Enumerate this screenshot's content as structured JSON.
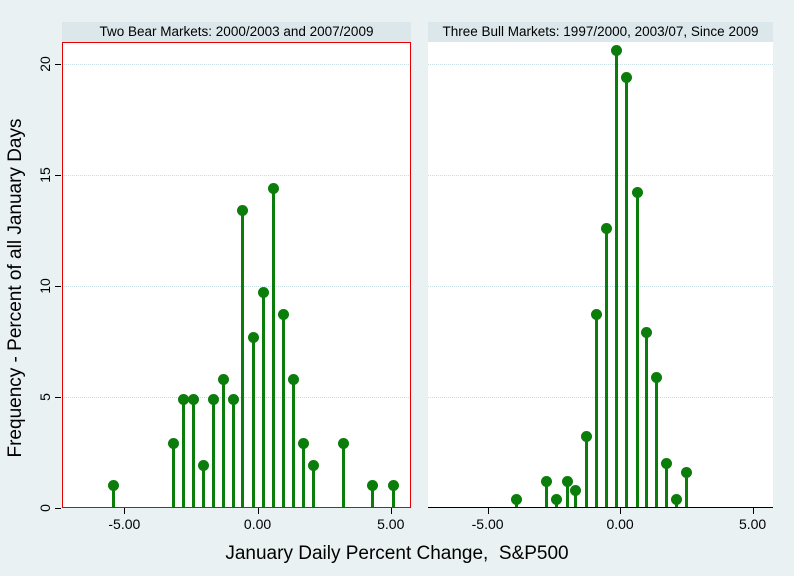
{
  "colors": {
    "background": "#e9f1f2",
    "plot_background": "#ffffff",
    "title_band_background": "#dbe7ea",
    "gridline": "#c7dce3",
    "stem_green": "#0a7d0a",
    "bear_frame_red": "#e30000",
    "axis_black": "#000000"
  },
  "chart_data": {
    "type": "stem",
    "xlabel": "January Daily Percent Change,  S&P500",
    "ylabel": "Frequency - Percent of all January Days",
    "ylim": [
      0,
      21.0
    ],
    "y_ticks": [
      0,
      5,
      10,
      15,
      20
    ],
    "y_tick_labels": [
      "0",
      "5",
      "10",
      "15",
      "20"
    ],
    "x_ticks": [
      -5,
      0,
      5
    ],
    "x_tick_labels": [
      "-5.00",
      "0.00",
      "5.00"
    ],
    "grid": "horizontal dotted at labeled y ticks above 0",
    "legend": "none",
    "panels": [
      {
        "title": "Two Bear Markets: 2000/2003 and 2007/2009",
        "framed": true,
        "frame_color": "#e30000",
        "xlim": [
          -7.34,
          5.76
        ],
        "x": [
          -5.42,
          -3.17,
          -2.79,
          -2.42,
          -2.04,
          -1.66,
          -1.29,
          -0.91,
          -0.55,
          -0.16,
          0.22,
          0.6,
          0.97,
          1.35,
          1.72,
          2.1,
          3.21,
          4.3,
          5.09
        ],
        "y": [
          1.0,
          2.9,
          4.9,
          4.9,
          1.9,
          4.9,
          5.8,
          4.9,
          13.4,
          7.7,
          9.7,
          14.4,
          8.7,
          5.8,
          2.9,
          1.9,
          2.9,
          1.0,
          1.0
        ]
      },
      {
        "title": "Three Bull Markets: 1997/2000, 2003/07, Since 2009",
        "framed": false,
        "frame_color": null,
        "xlim": [
          -7.25,
          5.77
        ],
        "x": [
          -3.91,
          -2.76,
          -2.41,
          -2.0,
          -1.67,
          -1.25,
          -0.9,
          -0.5,
          -0.14,
          0.26,
          0.64,
          1.0,
          1.38,
          1.74,
          2.14,
          2.51
        ],
        "y": [
          0.4,
          1.2,
          0.4,
          1.2,
          0.8,
          3.2,
          8.7,
          12.6,
          20.6,
          19.4,
          14.2,
          7.9,
          5.9,
          2.0,
          0.4,
          1.6
        ]
      }
    ]
  }
}
